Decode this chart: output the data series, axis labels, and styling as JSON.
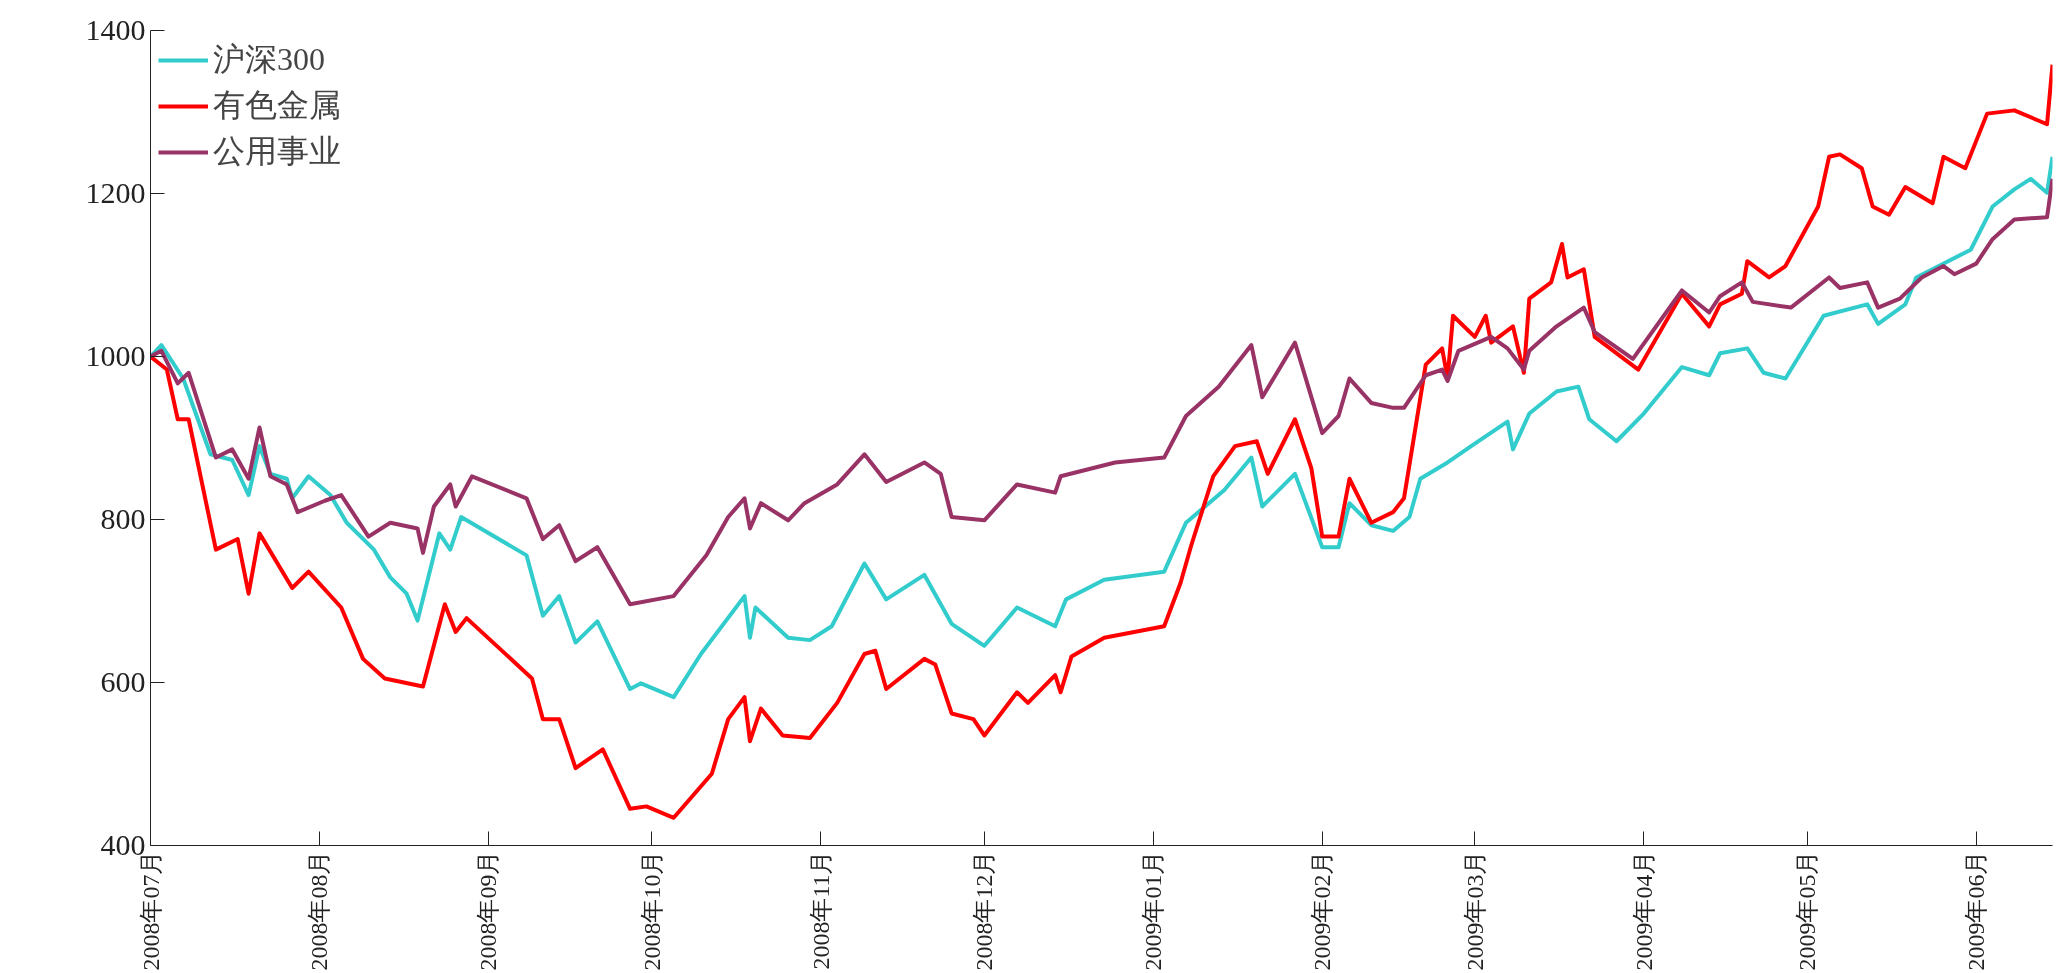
{
  "chart_data": {
    "type": "line",
    "xlim": [
      "2008-07-01",
      "2009-06-15"
    ],
    "xticks": [
      {
        "value": "2008-07-01",
        "label": "2008年07月"
      },
      {
        "value": "2008-08-01",
        "label": "2008年08月"
      },
      {
        "value": "2008-09-01",
        "label": "2008年09月"
      },
      {
        "value": "2008-10-01",
        "label": "2008年10月"
      },
      {
        "value": "2008-11-01",
        "label": "2008年11月"
      },
      {
        "value": "2008-12-01",
        "label": "2008年12月"
      },
      {
        "value": "2009-01-01",
        "label": "2009年01月"
      },
      {
        "value": "2009-02-01",
        "label": "2009年02月"
      },
      {
        "value": "2009-03-01",
        "label": "2009年03月"
      },
      {
        "value": "2009-04-01",
        "label": "2009年04月"
      },
      {
        "value": "2009-05-01",
        "label": "2009年05月"
      },
      {
        "value": "2009-06-01",
        "label": "2009年06月"
      }
    ],
    "ylim": [
      400,
      1400
    ],
    "yticks": [
      400,
      600,
      800,
      1000,
      1200,
      1400
    ],
    "grid": false,
    "legend": "top left",
    "series": [
      {
        "name": "沪深300",
        "color": "#33cccc",
        "x": [
          "2008-07-01",
          "2008-07-03",
          "2008-07-07",
          "2008-07-12",
          "2008-07-16",
          "2008-07-19",
          "2008-07-21",
          "2008-07-23",
          "2008-07-26",
          "2008-07-27",
          "2008-07-30",
          "2008-08-03",
          "2008-08-06",
          "2008-08-11",
          "2008-08-14",
          "2008-08-17",
          "2008-08-19",
          "2008-08-23",
          "2008-08-25",
          "2008-08-27",
          "2008-09-08",
          "2008-09-11",
          "2008-09-14",
          "2008-09-17",
          "2008-09-21",
          "2008-09-27",
          "2008-09-29",
          "2008-10-05",
          "2008-10-10",
          "2008-10-18",
          "2008-10-19",
          "2008-10-20",
          "2008-10-26",
          "2008-10-30",
          "2008-11-03",
          "2008-11-09",
          "2008-11-13",
          "2008-11-20",
          "2008-11-25",
          "2008-12-01",
          "2008-12-07",
          "2008-12-14",
          "2008-12-16",
          "2008-12-23",
          "2009-01-03",
          "2009-01-07",
          "2009-01-14",
          "2009-01-19",
          "2009-01-21",
          "2009-01-27",
          "2009-02-01",
          "2009-02-04",
          "2009-02-06",
          "2009-02-10",
          "2009-02-14",
          "2009-02-17",
          "2009-02-19",
          "2009-02-24",
          "2009-03-01",
          "2009-03-07",
          "2009-03-08",
          "2009-03-11",
          "2009-03-16",
          "2009-03-20",
          "2009-03-22",
          "2009-03-27",
          "2009-04-01",
          "2009-04-08",
          "2009-04-13",
          "2009-04-15",
          "2009-04-20",
          "2009-04-23",
          "2009-04-27",
          "2009-05-04",
          "2009-05-12",
          "2009-05-14",
          "2009-05-19",
          "2009-05-21",
          "2009-05-31",
          "2009-06-04",
          "2009-06-08",
          "2009-06-11",
          "2009-06-14",
          "2009-06-15"
        ],
        "values": [
          1000,
          1014,
          973,
          880,
          873,
          830,
          890,
          856,
          850,
          826,
          853,
          830,
          796,
          763,
          729,
          709,
          676,
          783,
          763,
          803,
          756,
          682,
          706,
          649,
          675,
          592,
          599,
          582,
          635,
          706,
          655,
          692,
          655,
          652,
          669,
          746,
          702,
          732,
          672,
          645,
          692,
          669,
          702,
          726,
          736,
          796,
          836,
          876,
          816,
          856,
          766,
          766,
          820,
          793,
          786,
          803,
          850,
          870,
          893,
          920,
          886,
          930,
          957,
          963,
          923,
          896,
          930,
          987,
          977,
          1004,
          1010,
          980,
          973,
          1050,
          1064,
          1040,
          1064,
          1097,
          1131,
          1184,
          1205,
          1218,
          1201,
          1245
        ]
      },
      {
        "name": "有色金属",
        "color": "#ff0000",
        "x": [
          "2008-07-01",
          "2008-07-04",
          "2008-07-06",
          "2008-07-08",
          "2008-07-13",
          "2008-07-17",
          "2008-07-19",
          "2008-07-21",
          "2008-07-27",
          "2008-07-30",
          "2008-08-05",
          "2008-08-09",
          "2008-08-13",
          "2008-08-20",
          "2008-08-24",
          "2008-08-26",
          "2008-08-28",
          "2008-09-09",
          "2008-09-11",
          "2008-09-14",
          "2008-09-17",
          "2008-09-22",
          "2008-09-27",
          "2008-09-30",
          "2008-10-05",
          "2008-10-12",
          "2008-10-15",
          "2008-10-18",
          "2008-10-19",
          "2008-10-21",
          "2008-10-25",
          "2008-10-30",
          "2008-11-04",
          "2008-11-09",
          "2008-11-11",
          "2008-11-13",
          "2008-11-20",
          "2008-11-22",
          "2008-11-25",
          "2008-11-29",
          "2008-12-01",
          "2008-12-07",
          "2008-12-09",
          "2008-12-14",
          "2008-12-15",
          "2008-12-17",
          "2008-12-23",
          "2009-01-03",
          "2009-01-06",
          "2009-01-08",
          "2009-01-12",
          "2009-01-16",
          "2009-01-20",
          "2009-01-22",
          "2009-01-27",
          "2009-01-30",
          "2009-02-01",
          "2009-02-04",
          "2009-02-06",
          "2009-02-10",
          "2009-02-14",
          "2009-02-16",
          "2009-02-20",
          "2009-02-23",
          "2009-02-24",
          "2009-02-25",
          "2009-03-01",
          "2009-03-03",
          "2009-03-04",
          "2009-03-08",
          "2009-03-10",
          "2009-03-11",
          "2009-03-15",
          "2009-03-17",
          "2009-03-18",
          "2009-03-21",
          "2009-03-23",
          "2009-03-31",
          "2009-04-08",
          "2009-04-13",
          "2009-04-15",
          "2009-04-19",
          "2009-04-20",
          "2009-04-24",
          "2009-04-27",
          "2009-05-03",
          "2009-05-05",
          "2009-05-07",
          "2009-05-11",
          "2009-05-13",
          "2009-05-16",
          "2009-05-19",
          "2009-05-24",
          "2009-05-26",
          "2009-05-30",
          "2009-06-03",
          "2009-06-08",
          "2009-06-14",
          "2009-06-15"
        ],
        "values": [
          1000,
          984,
          923,
          923,
          763,
          776,
          709,
          783,
          716,
          736,
          692,
          629,
          605,
          595,
          696,
          662,
          679,
          605,
          555,
          555,
          495,
          518,
          445,
          448,
          434,
          488,
          555,
          582,
          528,
          568,
          535,
          532,
          575,
          635,
          639,
          592,
          629,
          622,
          562,
          555,
          535,
          588,
          575,
          609,
          588,
          632,
          655,
          669,
          722,
          769,
          853,
          890,
          896,
          856,
          923,
          863,
          779,
          779,
          850,
          796,
          809,
          826,
          990,
          1010,
          973,
          1050,
          1024,
          1050,
          1017,
          1037,
          980,
          1071,
          1091,
          1138,
          1097,
          1107,
          1024,
          984,
          1077,
          1037,
          1064,
          1077,
          1117,
          1097,
          1111,
          1184,
          1245,
          1248,
          1231,
          1184,
          1174,
          1208,
          1188,
          1245,
          1231,
          1298,
          1302,
          1285,
          1358
        ]
      },
      {
        "name": "公用事业",
        "color": "#993366",
        "x": [
          "2008-07-01",
          "2008-07-03",
          "2008-07-06",
          "2008-07-08",
          "2008-07-13",
          "2008-07-16",
          "2008-07-19",
          "2008-07-21",
          "2008-07-23",
          "2008-07-26",
          "2008-07-28",
          "2008-08-02",
          "2008-08-05",
          "2008-08-10",
          "2008-08-14",
          "2008-08-19",
          "2008-08-20",
          "2008-08-22",
          "2008-08-25",
          "2008-08-26",
          "2008-08-29",
          "2008-09-08",
          "2008-09-11",
          "2008-09-14",
          "2008-09-17",
          "2008-09-21",
          "2008-09-27",
          "2008-10-05",
          "2008-10-11",
          "2008-10-15",
          "2008-10-18",
          "2008-10-19",
          "2008-10-21",
          "2008-10-26",
          "2008-10-29",
          "2008-11-04",
          "2008-11-09",
          "2008-11-13",
          "2008-11-20",
          "2008-11-23",
          "2008-11-25",
          "2008-12-01",
          "2008-12-07",
          "2008-12-14",
          "2008-12-15",
          "2008-12-25",
          "2009-01-03",
          "2009-01-07",
          "2009-01-13",
          "2009-01-19",
          "2009-01-21",
          "2009-01-27",
          "2009-02-01",
          "2009-02-04",
          "2009-02-06",
          "2009-02-10",
          "2009-02-14",
          "2009-02-16",
          "2009-02-20",
          "2009-02-23",
          "2009-02-24",
          "2009-02-26",
          "2009-03-04",
          "2009-03-07",
          "2009-03-10",
          "2009-03-11",
          "2009-03-16",
          "2009-03-21",
          "2009-03-23",
          "2009-03-30",
          "2009-04-08",
          "2009-04-13",
          "2009-04-15",
          "2009-04-19",
          "2009-04-21",
          "2009-04-28",
          "2009-05-05",
          "2009-05-07",
          "2009-05-12",
          "2009-05-14",
          "2009-05-18",
          "2009-05-22",
          "2009-05-26",
          "2009-05-28",
          "2009-06-01",
          "2009-06-04",
          "2009-06-08",
          "2009-06-14",
          "2009-06-15"
        ],
        "values": [
          1000,
          1007,
          967,
          980,
          876,
          886,
          850,
          913,
          853,
          843,
          809,
          823,
          830,
          779,
          796,
          789,
          759,
          816,
          843,
          816,
          853,
          826,
          776,
          793,
          749,
          766,
          696,
          706,
          756,
          803,
          826,
          789,
          820,
          799,
          820,
          843,
          880,
          846,
          870,
          856,
          803,
          799,
          843,
          833,
          853,
          870,
          876,
          927,
          963,
          1014,
          950,
          1017,
          906,
          927,
          973,
          943,
          937,
          937,
          977,
          984,
          970,
          1007,
          1024,
          1010,
          984,
          1007,
          1037,
          1060,
          1030,
          997,
          1081,
          1054,
          1074,
          1091,
          1067,
          1060,
          1097,
          1084,
          1091,
          1060,
          1071,
          1097,
          1111,
          1101,
          1114,
          1144,
          1168,
          1171,
          1218
        ]
      }
    ]
  }
}
